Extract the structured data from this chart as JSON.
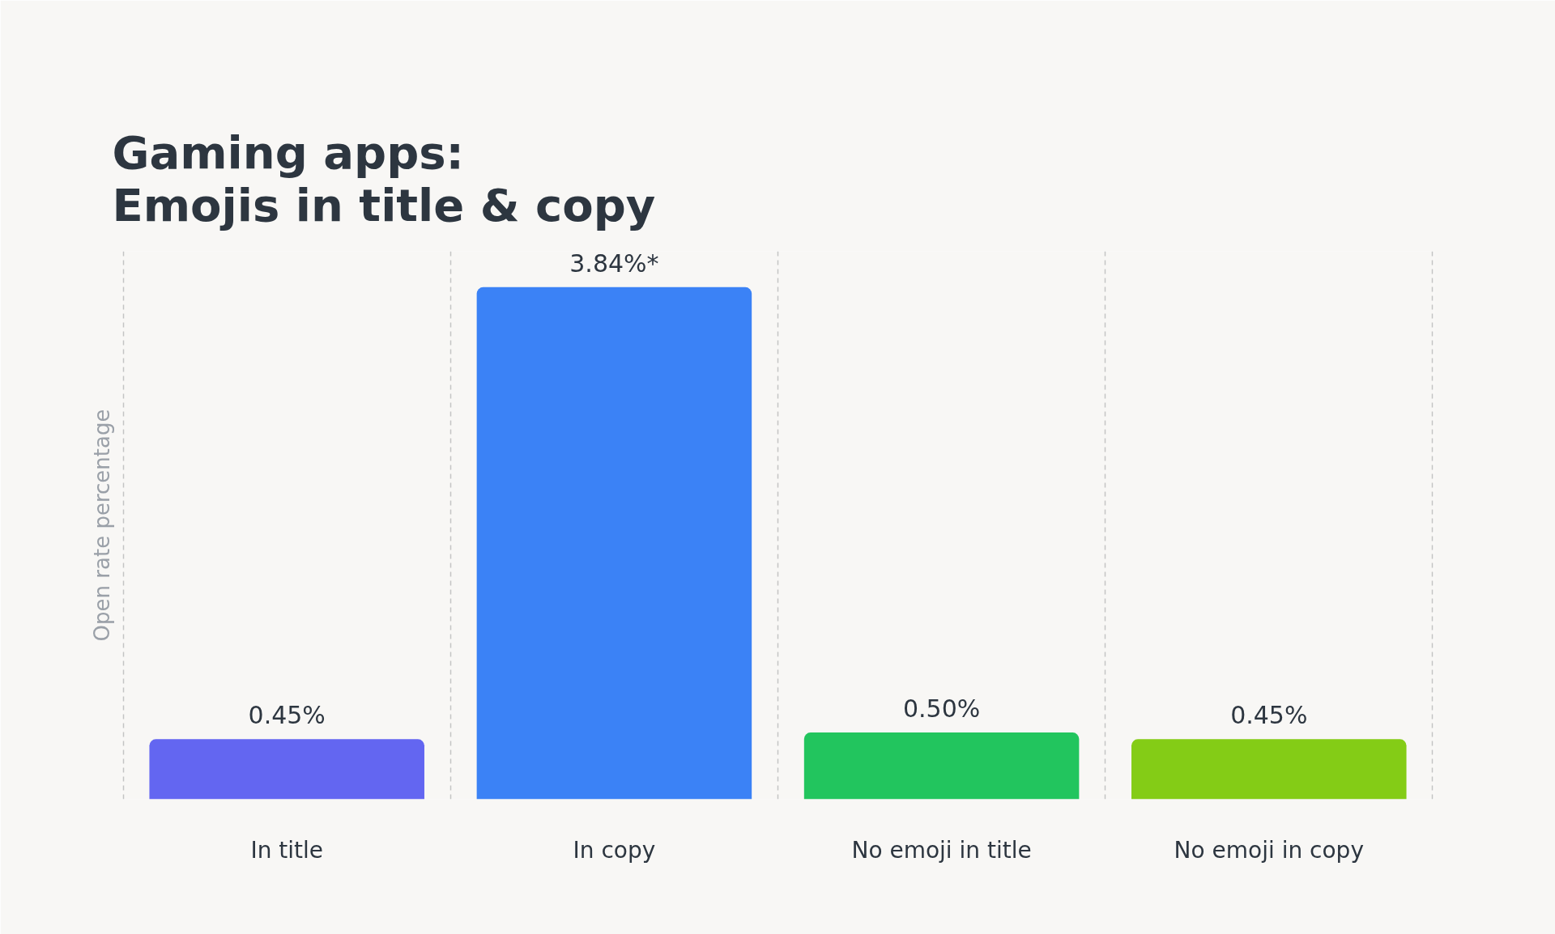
{
  "chart_data": {
    "type": "bar",
    "title": "Gaming apps:\nEmojis in title & copy",
    "ylabel": "Open rate percentage",
    "categories": [
      "In title",
      "In copy",
      "No emoji in title",
      "No emoji in copy"
    ],
    "values": [
      0.45,
      3.84,
      0.5,
      0.45
    ],
    "value_labels": [
      "0.45%",
      "3.84%*",
      "0.50%",
      "0.45%"
    ],
    "colors": [
      "#6366f1",
      "#3b82f6",
      "#22c55e",
      "#84cc16"
    ],
    "grid": "x",
    "tick_labels": "x"
  }
}
